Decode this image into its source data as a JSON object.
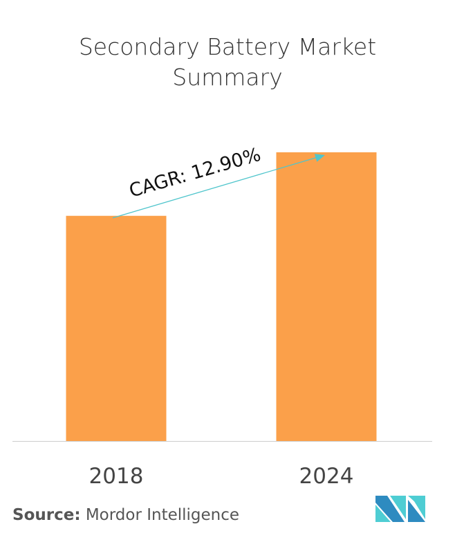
{
  "title_line1": "Secondary Battery Market",
  "title_line2": "Summary",
  "chart_data": {
    "type": "bar",
    "categories": [
      "2018",
      "2024"
    ],
    "values": [
      78,
      100
    ],
    "ylim": [
      0,
      100
    ],
    "grid": false,
    "bar_color": "#FBA04A",
    "annotation": {
      "text": "CAGR:  12.90%",
      "arrow_color": "#4FC5CC"
    }
  },
  "source": {
    "label": "Source:",
    "value": "Mordor Intelligence"
  },
  "logo": {
    "colors": [
      "#2E8BC0",
      "#4ECDD3"
    ]
  }
}
